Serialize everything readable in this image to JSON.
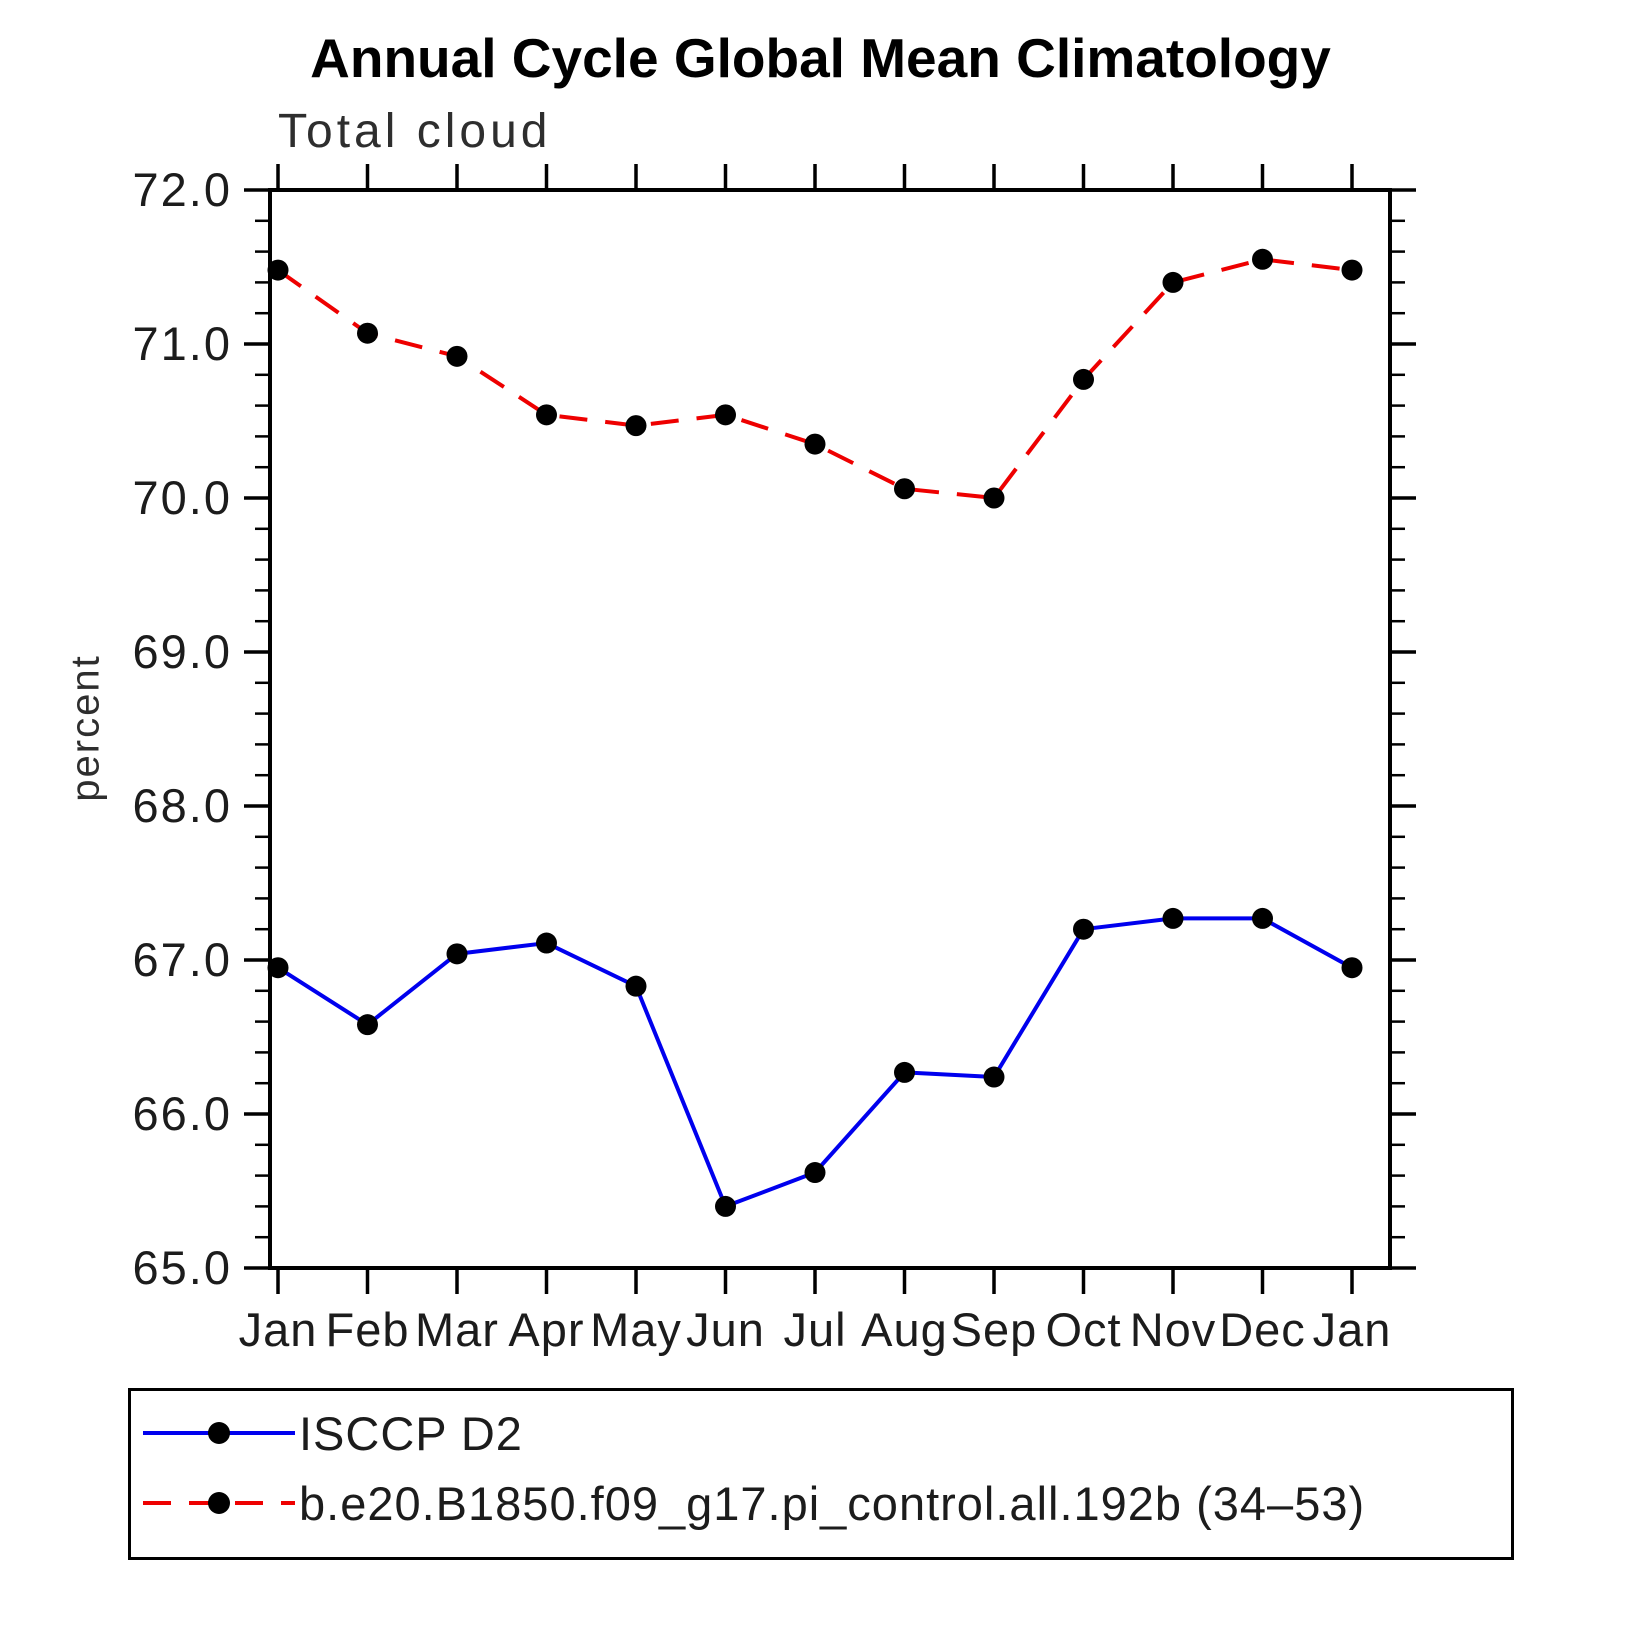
{
  "chart_data": {
    "type": "line",
    "title": "Annual Cycle Global Mean Climatology",
    "subtitle": "Total cloud",
    "ylabel": "percent",
    "xlabel": "",
    "categories": [
      "Jan",
      "Feb",
      "Mar",
      "Apr",
      "May",
      "Jun",
      "Jul",
      "Aug",
      "Sep",
      "Oct",
      "Nov",
      "Dec",
      "Jan"
    ],
    "series": [
      {
        "name": "ISCCP D2",
        "color": "#0000ee",
        "style": "solid",
        "values": [
          66.95,
          66.58,
          67.04,
          67.11,
          66.83,
          65.4,
          65.62,
          66.27,
          66.24,
          67.2,
          67.27,
          67.27,
          66.95
        ]
      },
      {
        "name": "b.e20.B1850.f09_g17.pi_control.all.192b (34–53)",
        "color": "#ee0000",
        "style": "dashed",
        "values": [
          71.48,
          71.07,
          70.92,
          70.54,
          70.47,
          70.54,
          70.35,
          70.06,
          70.0,
          70.77,
          71.4,
          71.55,
          71.48
        ]
      }
    ],
    "ylim": [
      65.0,
      72.0
    ],
    "yticks": [
      65.0,
      66.0,
      67.0,
      68.0,
      69.0,
      70.0,
      71.0,
      72.0
    ],
    "ytick_labels": [
      "65.0",
      "66.0",
      "67.0",
      "68.0",
      "69.0",
      "70.0",
      "71.0",
      "72.0"
    ],
    "minor_tick_interval": 0.2,
    "marker_color": "#000000",
    "grid": false,
    "legend_position": "bottom"
  }
}
